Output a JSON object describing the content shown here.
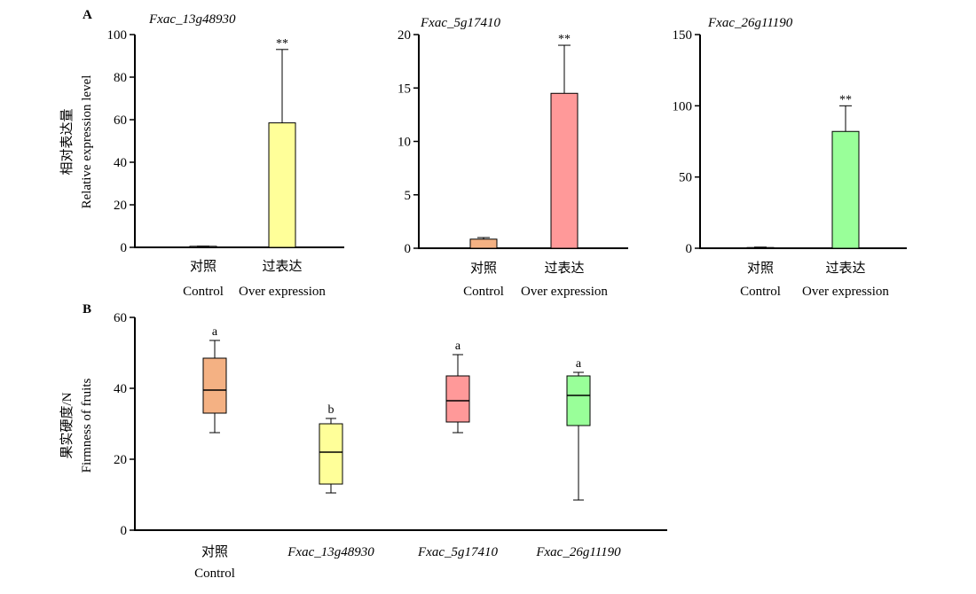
{
  "figure": {
    "panel_a_label": "A",
    "panel_b_label": "B"
  },
  "chart_data": [
    {
      "type": "bar",
      "panel": "A",
      "title": "Fxac_13g48930",
      "ylabel_cn": "相对表达量",
      "ylabel": "Relative expression level",
      "categories": [
        {
          "cn": "对照",
          "en": "Control"
        },
        {
          "cn": "过表达",
          "en": "Over expression"
        }
      ],
      "values": [
        0.5,
        58.5
      ],
      "error_upper": [
        0.6,
        93
      ],
      "annotations": [
        "",
        "**"
      ],
      "colors": [
        "#d9d9d9",
        "#ffff99"
      ],
      "ylim": [
        0,
        100
      ],
      "yticks": [
        0,
        20,
        40,
        60,
        80,
        100
      ]
    },
    {
      "type": "bar",
      "panel": "A",
      "title": "Fxac_5g17410",
      "categories": [
        {
          "cn": "对照",
          "en": "Control"
        },
        {
          "cn": "过表达",
          "en": "Over expression"
        }
      ],
      "values": [
        0.85,
        14.5
      ],
      "error_upper": [
        1.0,
        19
      ],
      "annotations": [
        "",
        "**"
      ],
      "colors": [
        "#f4b183",
        "#ff9999"
      ],
      "ylim": [
        0,
        20
      ],
      "yticks": [
        0,
        5,
        10,
        15,
        20
      ]
    },
    {
      "type": "bar",
      "panel": "A",
      "title": "Fxac_26g11190",
      "categories": [
        {
          "cn": "对照",
          "en": "Control"
        },
        {
          "cn": "过表达",
          "en": "Over expression"
        }
      ],
      "values": [
        0.5,
        82
      ],
      "error_upper": [
        0.8,
        100
      ],
      "annotations": [
        "",
        "**"
      ],
      "colors": [
        "#d9d9d9",
        "#99ff99"
      ],
      "ylim": [
        0,
        150
      ],
      "yticks": [
        0,
        50,
        100,
        150
      ]
    },
    {
      "type": "box",
      "panel": "B",
      "ylabel_cn": "果实硬度/N",
      "ylabel": "Firmness of fruits",
      "categories": [
        {
          "cn": "对照",
          "en": "Control",
          "italic": false
        },
        {
          "cn": "",
          "en": "Fxac_13g48930",
          "italic": true
        },
        {
          "cn": "",
          "en": "Fxac_5g17410",
          "italic": true
        },
        {
          "cn": "",
          "en": "Fxac_26g11190",
          "italic": true
        }
      ],
      "boxes": [
        {
          "min": 27.5,
          "q1": 33,
          "median": 39.5,
          "q3": 48.5,
          "max": 53.5,
          "letter": "a"
        },
        {
          "min": 10.5,
          "q1": 13,
          "median": 22,
          "q3": 30,
          "max": 31.5,
          "letter": "b"
        },
        {
          "min": 27.5,
          "q1": 30.5,
          "median": 36.5,
          "q3": 43.5,
          "max": 49.5,
          "letter": "a"
        },
        {
          "min": 8.5,
          "q1": 29.5,
          "median": 38,
          "q3": 43.5,
          "max": 44.5,
          "letter": "a"
        }
      ],
      "colors": [
        "#f4b183",
        "#ffff99",
        "#ff9999",
        "#99ff99"
      ],
      "ylim": [
        0,
        60
      ],
      "yticks": [
        0,
        20,
        40,
        60
      ]
    }
  ]
}
